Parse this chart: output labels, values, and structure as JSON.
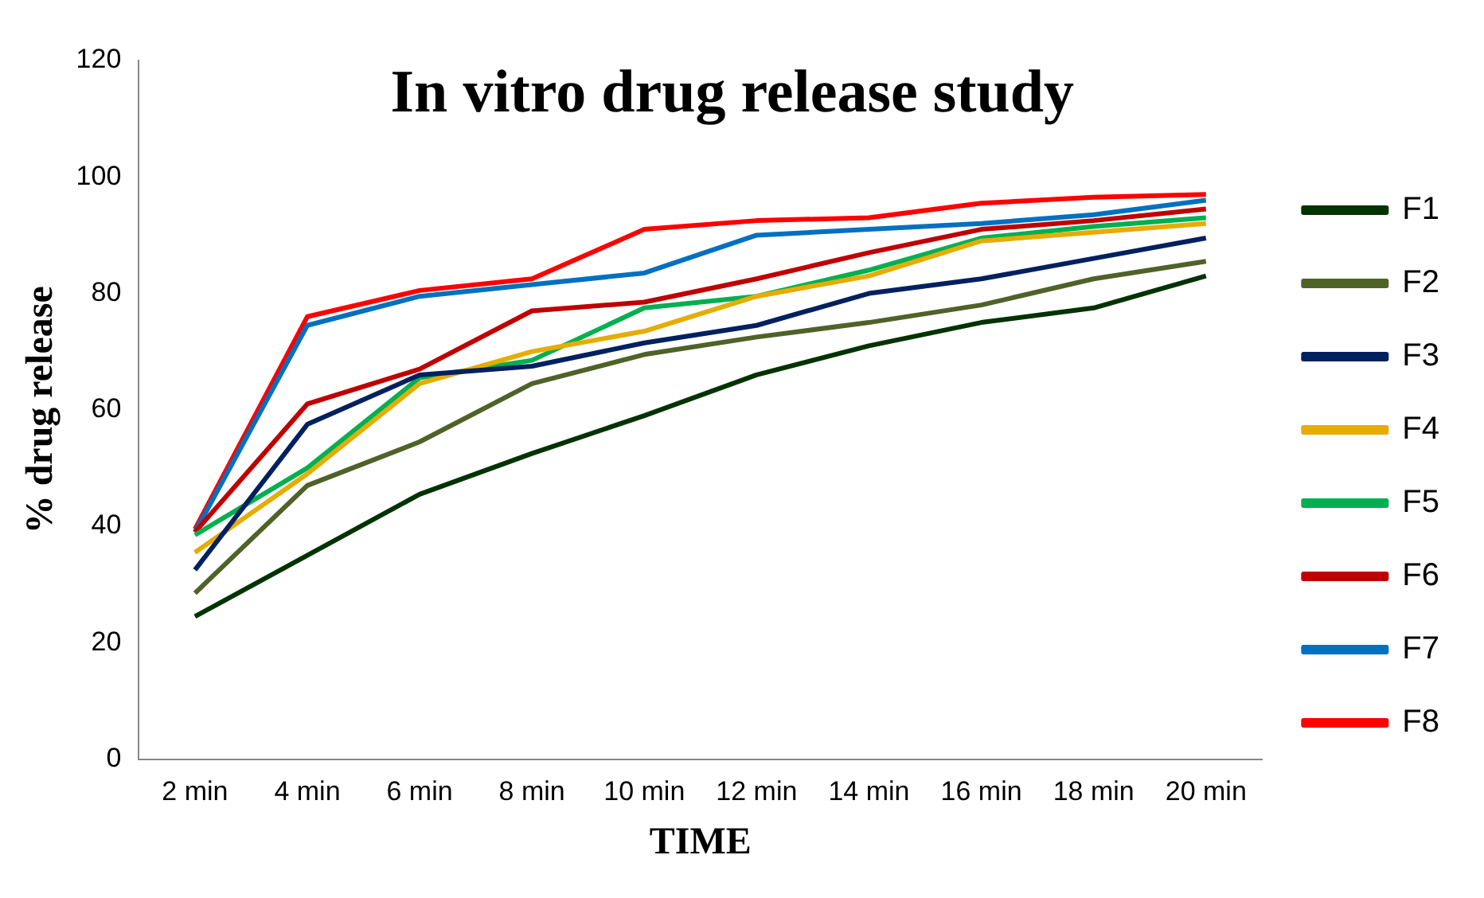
{
  "chart_data": {
    "type": "line",
    "title": "In vitro drug release study",
    "xlabel": "TIME",
    "ylabel": "% drug release",
    "categories": [
      "2 min",
      "4 min",
      "6 min",
      "8 min",
      "10 min",
      "12 min",
      "14 min",
      "16 min",
      "18 min",
      "20 min"
    ],
    "ylim": [
      0,
      120
    ],
    "yticks": [
      0,
      20,
      40,
      60,
      80,
      100,
      120
    ],
    "grid": false,
    "legend": "right",
    "marker": "none",
    "line_style": "solid",
    "series": [
      {
        "name": "F1",
        "color": "#003300",
        "values": [
          24.5,
          35,
          45.5,
          52.5,
          59,
          66,
          71,
          75,
          77.5,
          83
        ]
      },
      {
        "name": "F2",
        "color": "#4f6228",
        "values": [
          28.5,
          47,
          54.5,
          64.5,
          69.5,
          72.5,
          75,
          78,
          82.5,
          85.5
        ]
      },
      {
        "name": "F3",
        "color": "#002060",
        "values": [
          32.5,
          57.5,
          66,
          67.5,
          71.5,
          74.5,
          80,
          82.5,
          86,
          89.5
        ]
      },
      {
        "name": "F4",
        "color": "#e6ac00",
        "values": [
          35.5,
          49,
          64.5,
          70,
          73.5,
          79.5,
          83,
          89,
          90.5,
          92
        ]
      },
      {
        "name": "F5",
        "color": "#00b050",
        "values": [
          38.5,
          50,
          65.5,
          68.5,
          77.5,
          79.5,
          84,
          89.5,
          91.5,
          93
        ]
      },
      {
        "name": "F6",
        "color": "#c00000",
        "values": [
          39,
          61,
          67,
          77,
          78.5,
          82.5,
          87,
          91,
          92.5,
          94.5
        ]
      },
      {
        "name": "F7",
        "color": "#0070c0",
        "values": [
          39,
          74.5,
          79.5,
          81.5,
          83.5,
          90,
          91,
          92,
          93.5,
          96
        ]
      },
      {
        "name": "F8",
        "color": "#ff0000",
        "values": [
          39.5,
          76,
          80.5,
          82.5,
          91,
          92.5,
          93,
          95.5,
          96.5,
          97
        ]
      }
    ]
  }
}
